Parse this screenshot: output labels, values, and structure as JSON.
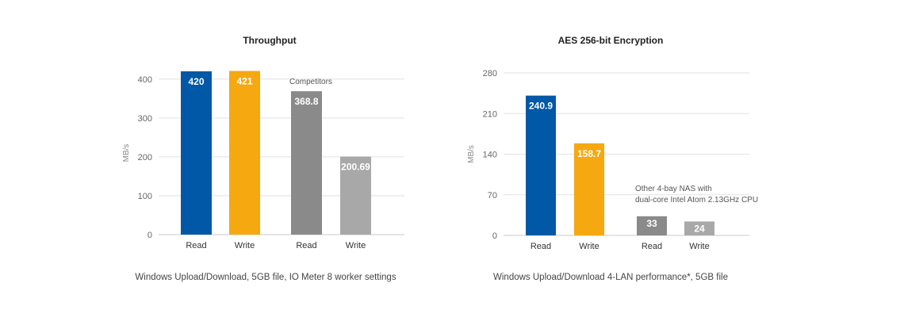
{
  "chart_data": [
    {
      "type": "bar",
      "title": "Throughput",
      "ylabel": "MB/s",
      "xlabel": "",
      "ylim": [
        0,
        420
      ],
      "yticks": [
        0,
        100,
        200,
        300,
        400
      ],
      "grid": true,
      "caption": "Windows Upload/Download, 5GB file, IO Meter 8 worker settings",
      "annotation": "Competitors",
      "categories": [
        "Read",
        "Write",
        "Read",
        "Write"
      ],
      "values": [
        420,
        421,
        368.8,
        200.69
      ],
      "labels": [
        "420",
        "421",
        "368.8",
        "200.69"
      ],
      "colors": [
        "#0058a6",
        "#f5a810",
        "#8a8a8a",
        "#a8a8a8"
      ]
    },
    {
      "type": "bar",
      "title": "AES 256-bit Encryption",
      "ylabel": "MB/s",
      "xlabel": "",
      "ylim": [
        0,
        280
      ],
      "yticks": [
        0,
        70,
        140,
        210,
        280
      ],
      "grid": true,
      "caption": "Windows Upload/Download 4-LAN performance*, 5GB file",
      "annotation": [
        "Other 4-bay NAS with",
        "dual-core Intel Atom 2.13GHz CPU"
      ],
      "categories": [
        "Read",
        "Write",
        "Read",
        "Write"
      ],
      "values": [
        240.9,
        158.7,
        33,
        24
      ],
      "labels": [
        "240.9",
        "158.7",
        "33",
        "24"
      ],
      "colors": [
        "#0058a6",
        "#f5a810",
        "#8a8a8a",
        "#a8a8a8"
      ]
    }
  ]
}
